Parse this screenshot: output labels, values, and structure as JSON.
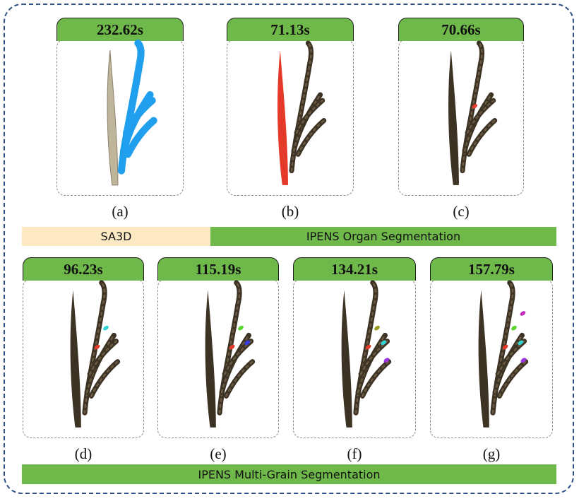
{
  "colors": {
    "tab_green": "#6fb84a",
    "sa3d_bar": "#fde9c4",
    "ipens_bar": "#6fb84a",
    "frame_border": "#2e4f86",
    "leaf_beige": "#bfb59a",
    "mask_blue": "#1f9fee",
    "mask_red": "#e53a2a",
    "plant_dark": "#3d3325"
  },
  "panels": [
    {
      "time": "232.62s",
      "caption": "(a)",
      "style": "sa3d"
    },
    {
      "time": "71.13s",
      "caption": "(b)",
      "style": "leaf-red"
    },
    {
      "time": "70.66s",
      "caption": "(c)",
      "style": "grain",
      "grains": [
        "#e53a2a"
      ]
    },
    {
      "time": "96.23s",
      "caption": "(d)",
      "style": "grain",
      "grains": [
        "#e53a2a",
        "#35d4d4"
      ]
    },
    {
      "time": "115.19s",
      "caption": "(e)",
      "style": "grain",
      "grains": [
        "#e53a2a",
        "#5ad12e",
        "#3a3ae0"
      ]
    },
    {
      "time": "134.21s",
      "caption": "(f)",
      "style": "grain",
      "grains": [
        "#e53a2a",
        "#9a9a1e",
        "#35d4d4",
        "#9a35e0"
      ]
    },
    {
      "time": "157.79s",
      "caption": "(g)",
      "style": "grain",
      "grains": [
        "#e53a2a",
        "#5ad12e",
        "#35d4d4",
        "#9a35e0",
        "#c02ec0"
      ]
    }
  ],
  "labels": {
    "sa3d": "SA3D",
    "organ": "IPENS  Organ Segmentation",
    "multi": "IPENS  Multi-Grain Segmentation"
  }
}
